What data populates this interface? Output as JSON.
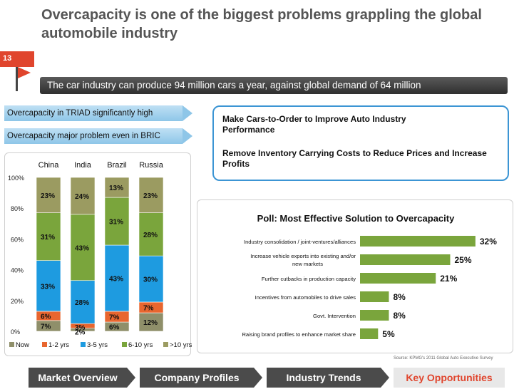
{
  "slide": {
    "number": "13",
    "title": "Overcapacity is one of the biggest problems grappling the global automobile industry",
    "subtitle": "The car industry can produce 94 million cars a year, against global demand of 64 million"
  },
  "tags": [
    "Overcapacity in TRIAD significantly high",
    "Overcapacity major problem even in BRIC"
  ],
  "callout": {
    "items": [
      "Make Cars-to-Order to Improve Auto Industry Performance",
      "Remove Inventory Carrying Costs to Reduce Prices and Increase Profits"
    ]
  },
  "nav": [
    {
      "label": "Market Overview",
      "active": false
    },
    {
      "label": "Company Profiles",
      "active": false
    },
    {
      "label": "Industry Trends",
      "active": false
    },
    {
      "label": "Key Opportunities",
      "active": true
    }
  ],
  "source": "Source: KPMG's 2011 Global Auto Executive Survey",
  "colors": {
    "accent": "#e0452d",
    "now": "#8f8f6a",
    "y1_2": "#e8662f",
    "y3_5": "#1e9be0",
    "y6_10": "#7aa53c",
    "y10p": "#9b9b61",
    "poll_bar": "#7aa53c"
  },
  "chart_data": [
    {
      "type": "bar",
      "stacked": true,
      "title": "",
      "categories": [
        "China",
        "India",
        "Brazil",
        "Russia"
      ],
      "ylim": [
        0,
        100
      ],
      "y_ticks": [
        "0%",
        "20%",
        "40%",
        "60%",
        "80%",
        "100%"
      ],
      "series": [
        {
          "name": "Now",
          "values": [
            7,
            2,
            6,
            12
          ]
        },
        {
          "name": "1-2 yrs",
          "values": [
            6,
            3,
            7,
            7
          ]
        },
        {
          "name": "3-5 yrs",
          "values": [
            33,
            28,
            43,
            30
          ]
        },
        {
          "name": "6-10 yrs",
          "values": [
            31,
            43,
            31,
            28
          ]
        },
        {
          "name": ">10 yrs",
          "values": [
            23,
            24,
            13,
            23
          ]
        }
      ],
      "data_labels": [
        [
          "7%",
          "6%",
          "33%",
          "31%",
          "23%"
        ],
        [
          "2%",
          "3%",
          "28%",
          "43%",
          "24%"
        ],
        [
          "6%",
          "7%",
          "43%",
          "31%",
          "13%"
        ],
        [
          "12%",
          "7%",
          "30%",
          "28%",
          "23%"
        ]
      ],
      "legend": [
        "Now",
        "1-2 yrs",
        "3-5 yrs",
        "6-10 yrs",
        ">10 yrs"
      ],
      "legend_position": "bottom"
    },
    {
      "type": "bar",
      "orientation": "horizontal",
      "title": "Poll: Most Effective Solution to Overcapacity",
      "categories": [
        "Industry consolidation / joint-ventures/alliances",
        "Increase vehicle exports into existing and/or new markets",
        "Further cutbacks in production capacity",
        "Incentives from automobiles to drive sales",
        "Govt. Intervention",
        "Raising brand profiles to enhance market share"
      ],
      "values": [
        32,
        25,
        21,
        8,
        8,
        5
      ],
      "data_labels": [
        "32%",
        "25%",
        "21%",
        "8%",
        "8%",
        "5%"
      ],
      "xlim": [
        0,
        34
      ]
    }
  ]
}
